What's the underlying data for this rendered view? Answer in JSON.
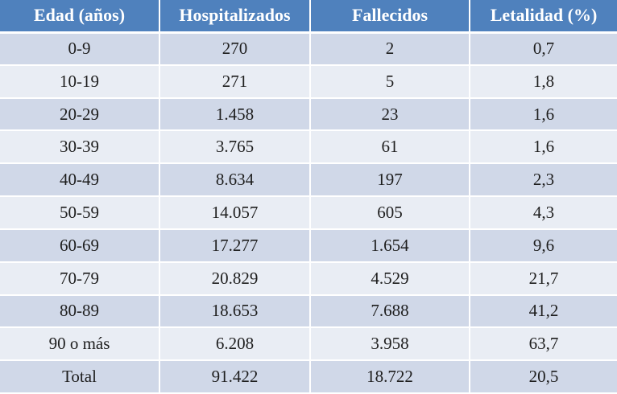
{
  "table": {
    "headers": [
      "Edad (años)",
      "Hospitalizados",
      "Fallecidos",
      "Letalidad (%)"
    ],
    "rows": [
      [
        "0-9",
        "270",
        "2",
        "0,7"
      ],
      [
        "10-19",
        "271",
        "5",
        "1,8"
      ],
      [
        "20-29",
        "1.458",
        "23",
        "1,6"
      ],
      [
        "30-39",
        "3.765",
        "61",
        "1,6"
      ],
      [
        "40-49",
        "8.634",
        "197",
        "2,3"
      ],
      [
        "50-59",
        "14.057",
        "605",
        "4,3"
      ],
      [
        "60-69",
        "17.277",
        "1.654",
        "9,6"
      ],
      [
        "70-79",
        "20.829",
        "4.529",
        "21,7"
      ],
      [
        "80-89",
        "18.653",
        "7.688",
        "41,2"
      ],
      [
        "90 o más",
        "6.208",
        "3.958",
        "63,7"
      ],
      [
        "Total",
        "91.422",
        "18.722",
        "20,5"
      ]
    ]
  },
  "colors": {
    "header_bg": "#4f81bd",
    "row_dark": "#d0d8e8",
    "row_light": "#e9edf4"
  }
}
